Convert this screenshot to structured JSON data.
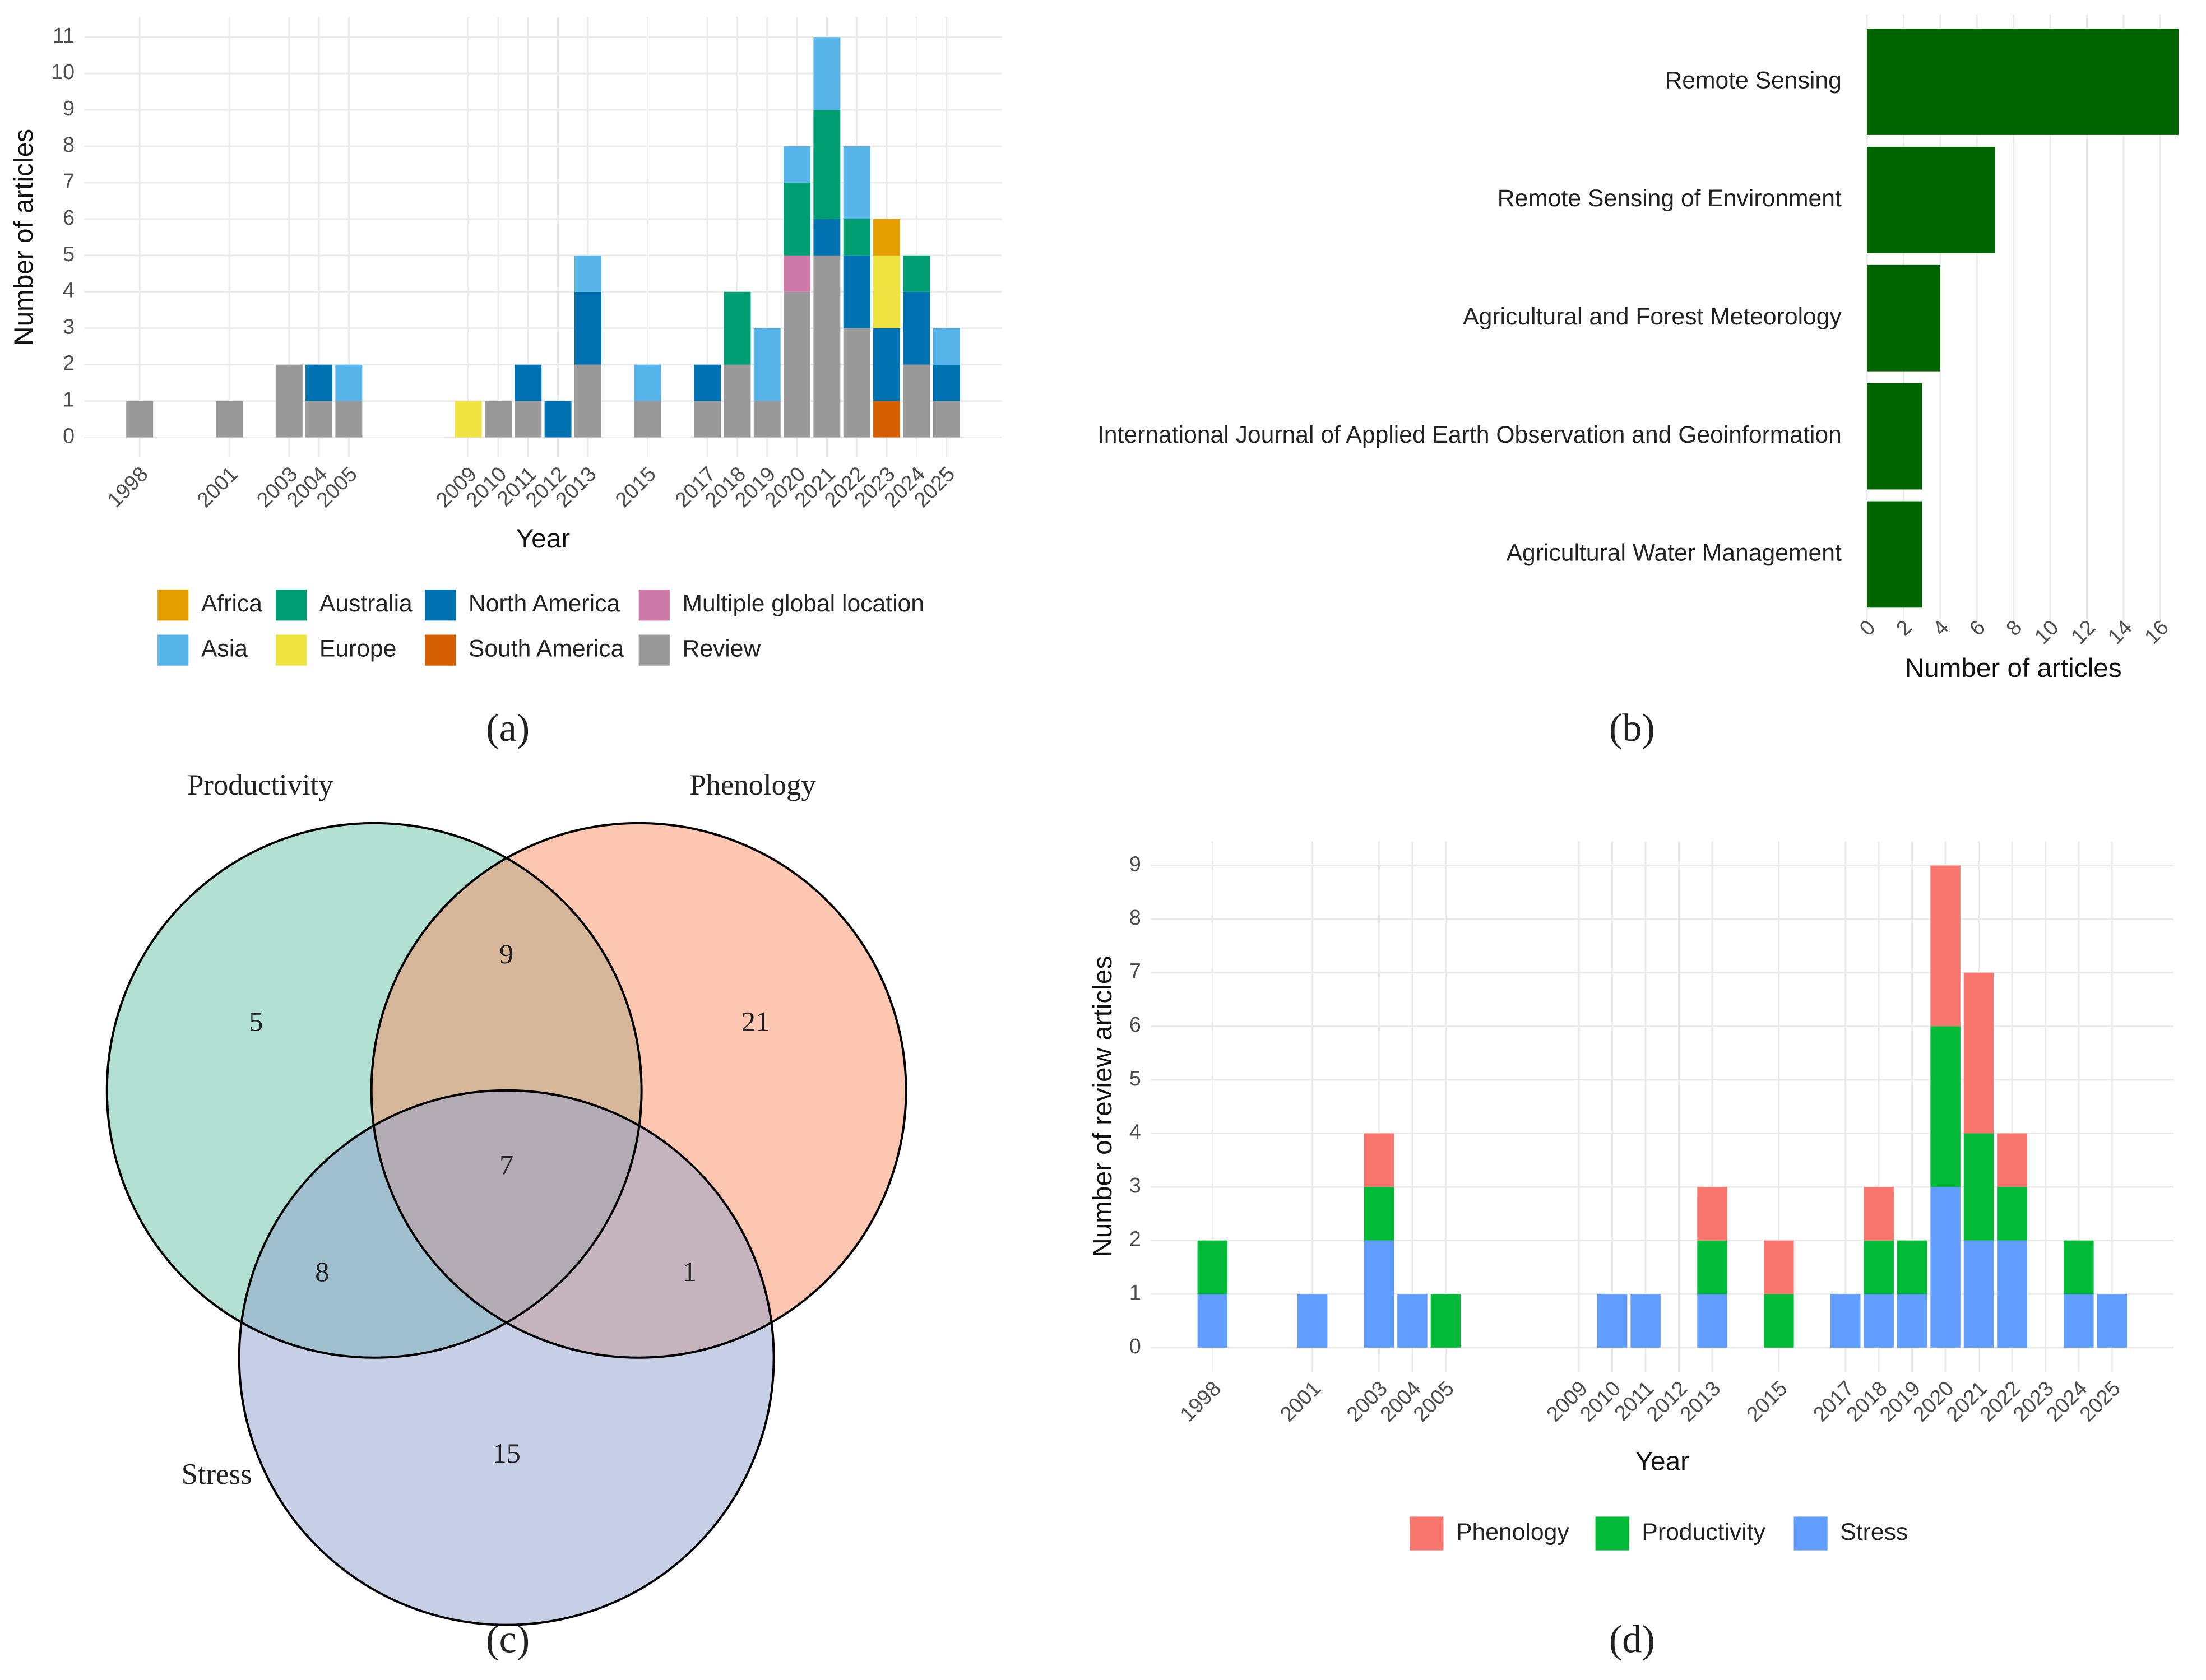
{
  "chart_data": [
    {
      "type": "bar",
      "stacked": true,
      "label": "(a)",
      "xlabel": "Year",
      "ylabel": "Number of articles",
      "x": [
        1998,
        2001,
        2003,
        2004,
        2005,
        2009,
        2010,
        2011,
        2012,
        2013,
        2015,
        2017,
        2018,
        2019,
        2020,
        2021,
        2022,
        2023,
        2024,
        2025
      ],
      "xlim": [
        1996.15,
        2026.85
      ],
      "xticks": [
        1998,
        2001,
        2003,
        2004,
        2005,
        2009,
        2010,
        2011,
        2012,
        2013,
        2015,
        2017,
        2018,
        2019,
        2020,
        2021,
        2022,
        2023,
        2024,
        2025
      ],
      "ylim": [
        -0.55,
        11.55
      ],
      "yticks": [
        0,
        1,
        2,
        3,
        4,
        5,
        6,
        7,
        8,
        9,
        10,
        11
      ],
      "grid": true,
      "legend": "bottom",
      "series": [
        {
          "name": "Africa",
          "color": "#E69F00",
          "values": [
            0,
            0,
            0,
            0,
            0,
            0,
            0,
            0,
            0,
            0,
            0,
            0,
            0,
            0,
            0,
            0,
            0,
            1,
            0,
            0
          ]
        },
        {
          "name": "Asia",
          "color": "#56B4E9",
          "values": [
            0,
            0,
            0,
            0,
            1,
            0,
            0,
            0,
            0,
            1,
            1,
            0,
            0,
            2,
            1,
            2,
            2,
            0,
            0,
            1
          ]
        },
        {
          "name": "Australia",
          "color": "#009E73",
          "values": [
            0,
            0,
            0,
            0,
            0,
            0,
            0,
            0,
            0,
            0,
            0,
            0,
            2,
            0,
            2,
            3,
            1,
            0,
            1,
            0
          ]
        },
        {
          "name": "Europe",
          "color": "#F0E442",
          "values": [
            0,
            0,
            0,
            0,
            0,
            1,
            0,
            0,
            0,
            0,
            0,
            0,
            0,
            0,
            0,
            0,
            0,
            2,
            0,
            0
          ]
        },
        {
          "name": "North America",
          "color": "#0072B2",
          "values": [
            0,
            0,
            0,
            1,
            0,
            0,
            0,
            1,
            1,
            2,
            0,
            1,
            0,
            0,
            0,
            1,
            2,
            2,
            2,
            1
          ]
        },
        {
          "name": "South America",
          "color": "#D55E00",
          "values": [
            0,
            0,
            0,
            0,
            0,
            0,
            0,
            0,
            0,
            0,
            0,
            0,
            0,
            0,
            0,
            0,
            0,
            1,
            0,
            0
          ]
        },
        {
          "name": "Multiple global location",
          "color": "#CC79A7",
          "values": [
            0,
            0,
            0,
            0,
            0,
            0,
            0,
            0,
            0,
            0,
            0,
            0,
            0,
            0,
            1,
            0,
            0,
            0,
            0,
            0
          ]
        },
        {
          "name": "Review",
          "color": "#999999",
          "values": [
            1,
            1,
            2,
            1,
            1,
            0,
            1,
            1,
            0,
            2,
            1,
            1,
            2,
            1,
            4,
            5,
            3,
            0,
            2,
            1
          ]
        }
      ]
    },
    {
      "type": "hbar",
      "label": "(b)",
      "xlabel": "Number of articles",
      "categories": [
        "Remote Sensing",
        "Remote Sensing of Environment",
        "Agricultural and Forest Meteorology",
        "International Journal of Applied Earth Observation and Geoinformation",
        "Agricultural Water Management"
      ],
      "values": [
        17,
        7,
        4,
        3,
        3
      ],
      "color": "#006400",
      "xlim": [
        0,
        17.5
      ],
      "xticks": [
        0,
        2,
        4,
        6,
        8,
        10,
        12,
        14,
        16
      ],
      "grid": true
    },
    {
      "type": "venn",
      "label": "(c)",
      "sets": [
        {
          "name": "Productivity",
          "color": "#66c2a5"
        },
        {
          "name": "Phenology",
          "color": "#fc8d62"
        },
        {
          "name": "Stress",
          "color": "#8da0cb"
        }
      ],
      "regions": [
        {
          "sets": [
            "Productivity"
          ],
          "value": 5
        },
        {
          "sets": [
            "Phenology"
          ],
          "value": 21
        },
        {
          "sets": [
            "Stress"
          ],
          "value": 15
        },
        {
          "sets": [
            "Productivity",
            "Phenology"
          ],
          "value": 9
        },
        {
          "sets": [
            "Productivity",
            "Stress"
          ],
          "value": 8
        },
        {
          "sets": [
            "Phenology",
            "Stress"
          ],
          "value": 1
        },
        {
          "sets": [
            "Productivity",
            "Phenology",
            "Stress"
          ],
          "value": 7
        }
      ]
    },
    {
      "type": "bar",
      "stacked": true,
      "label": "(d)",
      "xlabel": "Year",
      "ylabel": "Number of review articles",
      "x": [
        1998,
        2001,
        2003,
        2004,
        2005,
        2009,
        2010,
        2011,
        2012,
        2013,
        2015,
        2017,
        2018,
        2019,
        2020,
        2021,
        2022,
        2023,
        2024,
        2025
      ],
      "xlim": [
        1996.15,
        2026.85
      ],
      "xticks": [
        1998,
        2001,
        2003,
        2004,
        2005,
        2009,
        2010,
        2011,
        2012,
        2013,
        2015,
        2017,
        2018,
        2019,
        2020,
        2021,
        2022,
        2023,
        2024,
        2025
      ],
      "ylim": [
        -0.45,
        9.45
      ],
      "yticks": [
        0,
        1,
        2,
        3,
        4,
        5,
        6,
        7,
        8,
        9
      ],
      "grid": true,
      "legend": "bottom",
      "series": [
        {
          "name": "Phenology",
          "color": "#F8766D",
          "values": [
            0,
            0,
            1,
            0,
            0,
            0,
            0,
            0,
            0,
            1,
            1,
            0,
            1,
            0,
            3,
            3,
            1,
            0,
            0,
            0
          ]
        },
        {
          "name": "Productivity",
          "color": "#00BA38",
          "values": [
            1,
            0,
            1,
            0,
            1,
            0,
            0,
            0,
            0,
            1,
            1,
            0,
            1,
            1,
            3,
            2,
            1,
            0,
            1,
            0
          ]
        },
        {
          "name": "Stress",
          "color": "#619CFF",
          "values": [
            1,
            1,
            2,
            1,
            0,
            0,
            1,
            1,
            0,
            1,
            0,
            1,
            1,
            1,
            3,
            2,
            2,
            0,
            1,
            1
          ]
        }
      ]
    }
  ]
}
